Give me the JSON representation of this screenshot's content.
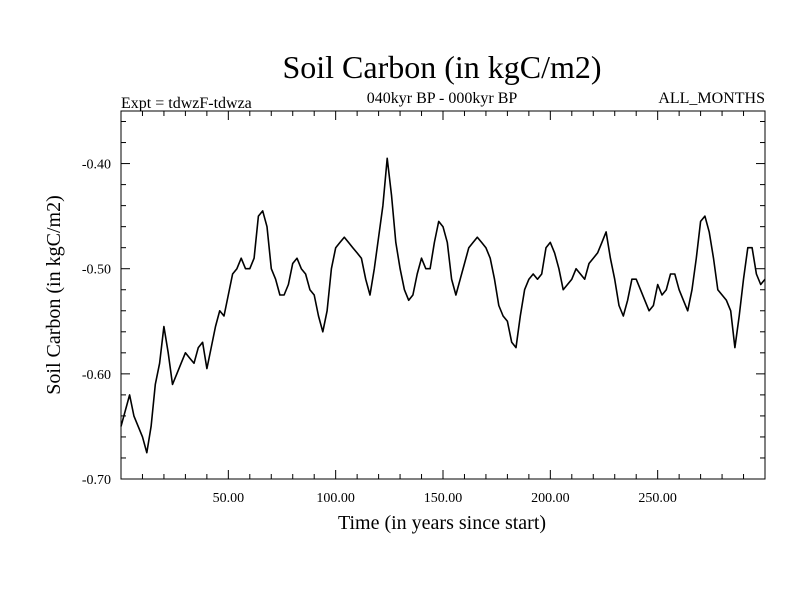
{
  "chart_data": {
    "type": "line",
    "title": "Soil Carbon (in kgC/m2)",
    "subtitle_left": "Expt = tdwzF-tdwza",
    "subtitle_center": "040kyr BP - 000kyr BP",
    "subtitle_right": "ALL_MONTHS",
    "xlabel": "Time (in years since start)",
    "ylabel": "Soil Carbon (in kgC/m2)",
    "xlim": [
      0,
      300
    ],
    "ylim": [
      -0.7,
      -0.35
    ],
    "x_ticks": [
      50,
      100,
      150,
      200,
      250
    ],
    "x_tick_labels": [
      "50.00",
      "100.00",
      "150.00",
      "200.00",
      "250.00"
    ],
    "y_ticks": [
      -0.7,
      -0.6,
      -0.5,
      -0.4
    ],
    "y_tick_labels": [
      "-0.70",
      "-0.60",
      "-0.50",
      "-0.40"
    ],
    "grid": false,
    "series": [
      {
        "color": "#000000",
        "x": [
          0,
          2,
          4,
          6,
          8,
          10,
          12,
          14,
          16,
          18,
          20,
          22,
          24,
          26,
          28,
          30,
          32,
          34,
          36,
          38,
          40,
          42,
          44,
          46,
          48,
          50,
          52,
          54,
          56,
          58,
          60,
          62,
          64,
          66,
          68,
          70,
          72,
          74,
          76,
          78,
          80,
          82,
          84,
          86,
          88,
          90,
          92,
          94,
          96,
          98,
          100,
          102,
          104,
          106,
          108,
          110,
          112,
          114,
          116,
          118,
          120,
          122,
          124,
          126,
          128,
          130,
          132,
          134,
          136,
          138,
          140,
          142,
          144,
          146,
          148,
          150,
          152,
          154,
          156,
          158,
          160,
          162,
          164,
          166,
          168,
          170,
          172,
          174,
          176,
          178,
          180,
          182,
          184,
          186,
          188,
          190,
          192,
          194,
          196,
          198,
          200,
          202,
          204,
          206,
          208,
          210,
          212,
          214,
          216,
          218,
          220,
          222,
          224,
          226,
          228,
          230,
          232,
          234,
          236,
          238,
          240,
          242,
          244,
          246,
          248,
          250,
          252,
          254,
          256,
          258,
          260,
          262,
          264,
          266,
          268,
          270,
          272,
          274,
          276,
          278,
          280,
          282,
          284,
          286,
          288,
          290,
          292,
          294,
          296,
          298,
          300
        ],
        "y": [
          -0.65,
          -0.635,
          -0.62,
          -0.64,
          -0.65,
          -0.66,
          -0.675,
          -0.65,
          -0.61,
          -0.59,
          -0.555,
          -0.58,
          -0.61,
          -0.6,
          -0.59,
          -0.58,
          -0.585,
          -0.59,
          -0.575,
          -0.57,
          -0.595,
          -0.575,
          -0.555,
          -0.54,
          -0.545,
          -0.525,
          -0.505,
          -0.5,
          -0.49,
          -0.5,
          -0.5,
          -0.49,
          -0.45,
          -0.445,
          -0.46,
          -0.5,
          -0.51,
          -0.525,
          -0.525,
          -0.515,
          -0.495,
          -0.49,
          -0.5,
          -0.505,
          -0.52,
          -0.525,
          -0.545,
          -0.56,
          -0.54,
          -0.5,
          -0.48,
          -0.475,
          -0.47,
          -0.475,
          -0.48,
          -0.485,
          -0.49,
          -0.51,
          -0.525,
          -0.5,
          -0.47,
          -0.44,
          -0.395,
          -0.43,
          -0.475,
          -0.5,
          -0.52,
          -0.53,
          -0.525,
          -0.505,
          -0.49,
          -0.5,
          -0.5,
          -0.475,
          -0.455,
          -0.46,
          -0.475,
          -0.51,
          -0.525,
          -0.51,
          -0.495,
          -0.48,
          -0.475,
          -0.47,
          -0.475,
          -0.48,
          -0.49,
          -0.51,
          -0.535,
          -0.545,
          -0.55,
          -0.57,
          -0.575,
          -0.545,
          -0.52,
          -0.51,
          -0.505,
          -0.51,
          -0.505,
          -0.48,
          -0.475,
          -0.485,
          -0.5,
          -0.52,
          -0.515,
          -0.51,
          -0.5,
          -0.505,
          -0.51,
          -0.495,
          -0.49,
          -0.485,
          -0.475,
          -0.465,
          -0.49,
          -0.51,
          -0.535,
          -0.545,
          -0.53,
          -0.51,
          -0.51,
          -0.52,
          -0.53,
          -0.54,
          -0.535,
          -0.515,
          -0.525,
          -0.52,
          -0.505,
          -0.505,
          -0.52,
          -0.53,
          -0.54,
          -0.52,
          -0.49,
          -0.455,
          -0.45,
          -0.465,
          -0.49,
          -0.52,
          -0.525,
          -0.53,
          -0.54,
          -0.575,
          -0.545,
          -0.51,
          -0.48,
          -0.48,
          -0.505,
          -0.515,
          -0.51
        ]
      }
    ]
  }
}
